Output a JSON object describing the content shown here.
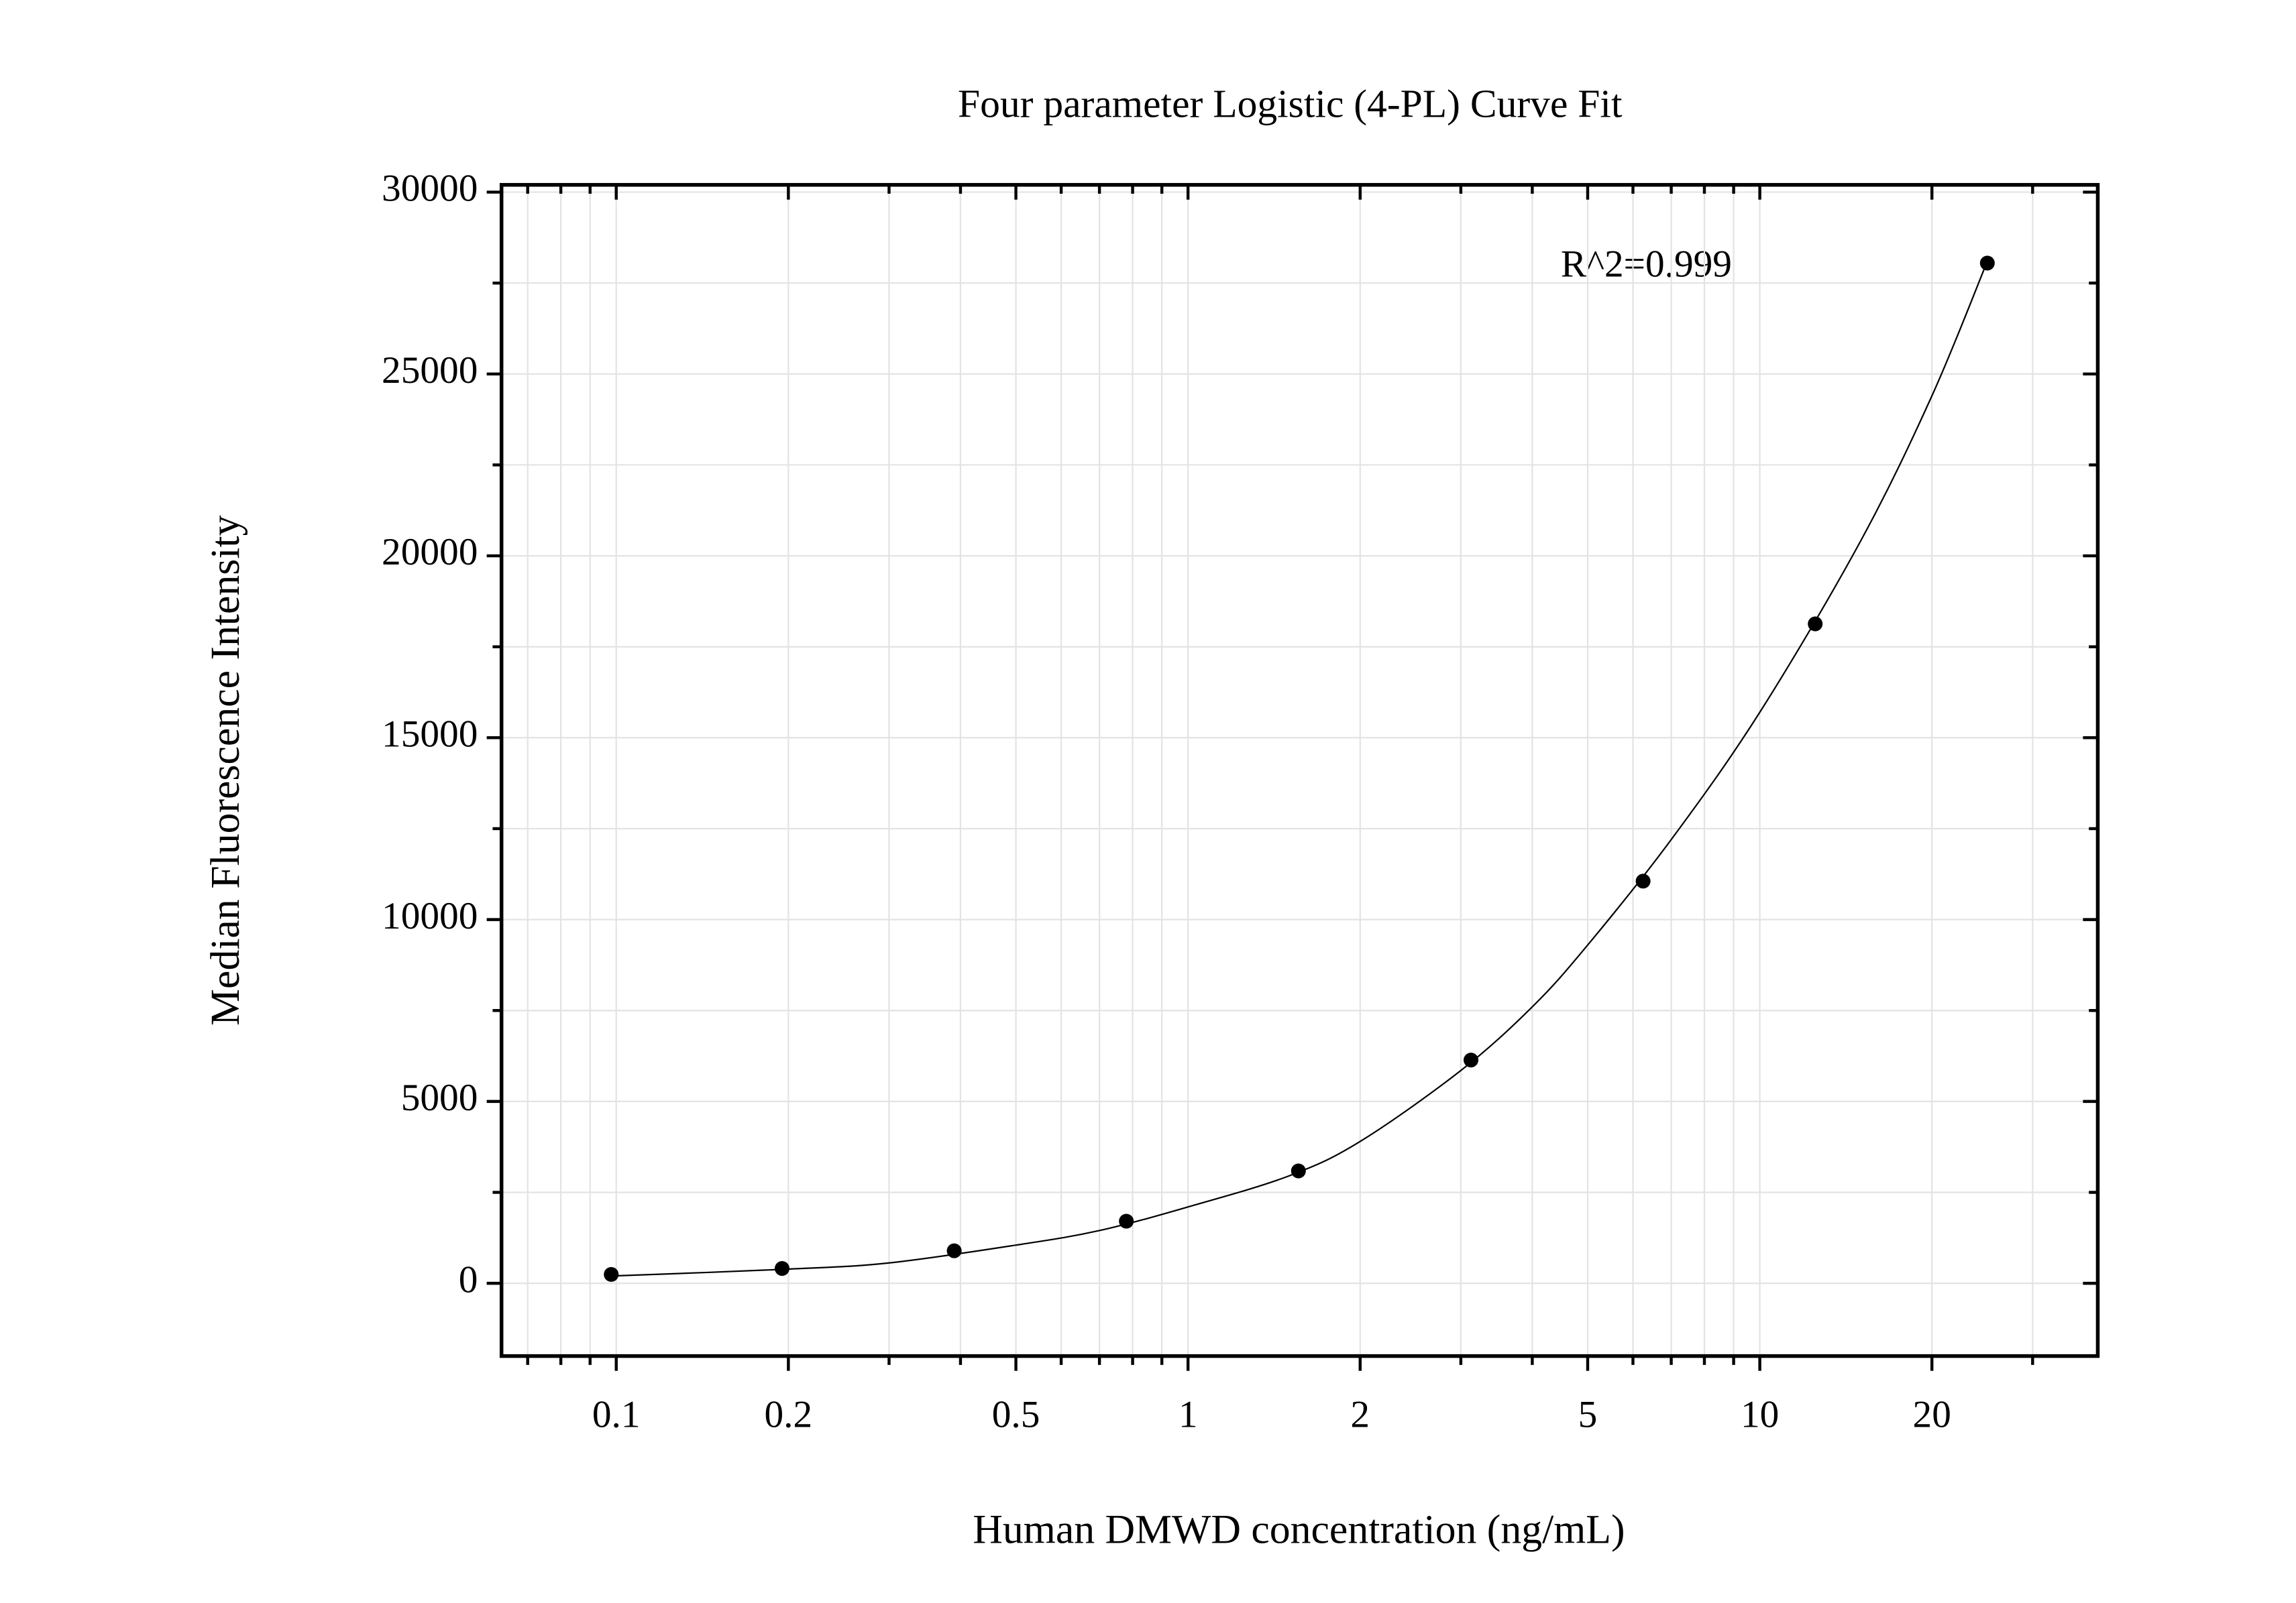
{
  "chart_data": {
    "type": "scatter",
    "title": "Four parameter Logistic (4-PL) Curve Fit",
    "x_label": "Human DMWD concentration (ng/mL)",
    "y_label": "Median Fluorescence Intensity",
    "annotation": "R^2=0.999",
    "x_scale": "log",
    "grid": true,
    "color": "#000000",
    "x": [
      0.098,
      0.195,
      0.39,
      0.78,
      1.56,
      3.125,
      6.25,
      12.5,
      25
    ],
    "values": [
      244,
      407,
      894,
      1707,
      3089,
      6138,
      11057,
      18130,
      28049
    ],
    "fit_curve": {
      "x": [
        0.098,
        0.2,
        0.3,
        0.5,
        0.7,
        1,
        1.5,
        2,
        3,
        4,
        5,
        7,
        10,
        15,
        20,
        25
      ],
      "values": [
        200,
        390,
        560,
        1050,
        1450,
        2100,
        2950,
        3900,
        5850,
        7600,
        9300,
        12200,
        15700,
        20400,
        24400,
        28100
      ]
    },
    "xlim": [
      0.063,
      39
    ],
    "ylim": [
      -2000,
      30200
    ],
    "xticks": [
      0.1,
      0.2,
      0.5,
      1,
      2,
      5,
      10,
      20
    ],
    "xminorticks": [
      0.07,
      0.08,
      0.09,
      0.3,
      0.4,
      0.6,
      0.7,
      0.8,
      0.9,
      3,
      4,
      6,
      7,
      8,
      9,
      30
    ],
    "yticks": [
      0,
      5000,
      10000,
      15000,
      20000,
      25000,
      30000
    ],
    "yminorticks": [
      2500,
      7500,
      12500,
      17500,
      22500,
      27500
    ]
  }
}
